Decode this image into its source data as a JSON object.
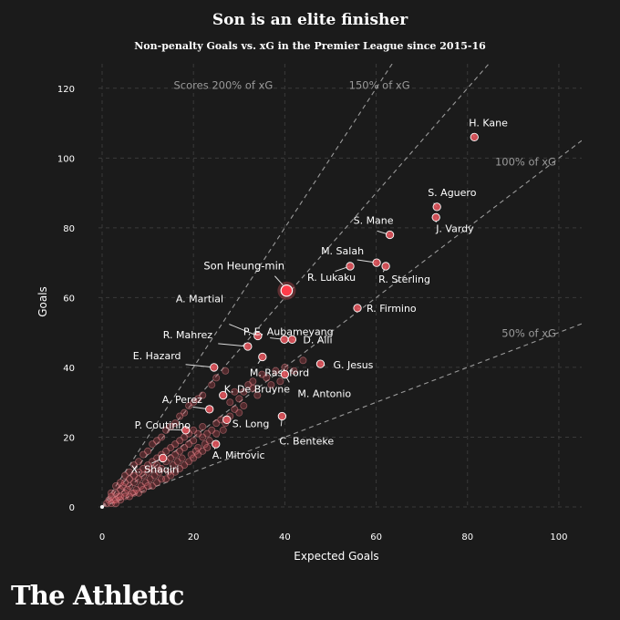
{
  "chart_data": {
    "type": "scatter",
    "title": "Son is an elite finisher",
    "subtitle": "Non-penalty Goals vs. xG in the Premier League since 2015-16",
    "xlabel": "Expected Goals",
    "ylabel": "Goals",
    "xlim": [
      0,
      105
    ],
    "ylim": [
      0,
      127
    ],
    "xticks": [
      0,
      20,
      40,
      60,
      80,
      100
    ],
    "yticks": [
      0,
      20,
      40,
      60,
      80,
      100,
      120
    ],
    "grid": true,
    "reference_lines": [
      {
        "ratio": 2.0,
        "label": "Scores 200% of xG"
      },
      {
        "ratio": 1.5,
        "label": "150% of xG"
      },
      {
        "ratio": 1.0,
        "label": "100% of xG"
      },
      {
        "ratio": 0.5,
        "label": "50% of xG"
      }
    ],
    "highlight": {
      "name": "Son Heung-min",
      "x": 40.4,
      "y": 62
    },
    "labeled_points": [
      {
        "name": "H. Kane",
        "x": 81.5,
        "y": 106
      },
      {
        "name": "S. Aguero",
        "x": 73.3,
        "y": 86
      },
      {
        "name": "J. Vardy",
        "x": 73.1,
        "y": 83
      },
      {
        "name": "S. Mane",
        "x": 63.0,
        "y": 78
      },
      {
        "name": "M. Salah",
        "x": 60.1,
        "y": 70
      },
      {
        "name": "R. Sterling",
        "x": 62.1,
        "y": 69
      },
      {
        "name": "R. Lukaku",
        "x": 54.3,
        "y": 69
      },
      {
        "name": "R. Firmino",
        "x": 55.9,
        "y": 57
      },
      {
        "name": "A. Martial",
        "x": 34.1,
        "y": 49
      },
      {
        "name": "P. E. Aubameyang",
        "x": 39.9,
        "y": 48
      },
      {
        "name": "D. Alli",
        "x": 41.6,
        "y": 48
      },
      {
        "name": "R. Mahrez",
        "x": 31.9,
        "y": 46
      },
      {
        "name": "M. Rashford",
        "x": 35.1,
        "y": 43
      },
      {
        "name": "E. Hazard",
        "x": 24.5,
        "y": 40
      },
      {
        "name": "G. Jesus",
        "x": 47.8,
        "y": 41
      },
      {
        "name": "K. De Bruyne",
        "x": 26.5,
        "y": 32
      },
      {
        "name": "M. Antonio",
        "x": 40.0,
        "y": 38
      },
      {
        "name": "A. Perez",
        "x": 23.5,
        "y": 28
      },
      {
        "name": "S. Long",
        "x": 27.3,
        "y": 25
      },
      {
        "name": "P. Coutinho",
        "x": 18.3,
        "y": 22
      },
      {
        "name": "C. Benteke",
        "x": 39.4,
        "y": 26
      },
      {
        "name": "X. Shaqiri",
        "x": 13.3,
        "y": 14
      },
      {
        "name": "A. Mitrovic",
        "x": 24.9,
        "y": 18
      }
    ],
    "other_points": [
      [
        1,
        1
      ],
      [
        1.5,
        2
      ],
      [
        2,
        1
      ],
      [
        2,
        3
      ],
      [
        2.5,
        2
      ],
      [
        3,
        4
      ],
      [
        3,
        2
      ],
      [
        3.5,
        3
      ],
      [
        4,
        5
      ],
      [
        4,
        3
      ],
      [
        4.5,
        6
      ],
      [
        5,
        4
      ],
      [
        5,
        7
      ],
      [
        5.5,
        5
      ],
      [
        6,
        8
      ],
      [
        6,
        6
      ],
      [
        6.5,
        4
      ],
      [
        7,
        9
      ],
      [
        7,
        7
      ],
      [
        7.5,
        5
      ],
      [
        8,
        10
      ],
      [
        8,
        8
      ],
      [
        8.5,
        6
      ],
      [
        9,
        11
      ],
      [
        9,
        9
      ],
      [
        9.5,
        7
      ],
      [
        10,
        12
      ],
      [
        10,
        10
      ],
      [
        10.5,
        8
      ],
      [
        11,
        13
      ],
      [
        11,
        11
      ],
      [
        11.5,
        9
      ],
      [
        12,
        14
      ],
      [
        12,
        12
      ],
      [
        12.5,
        10
      ],
      [
        13,
        15
      ],
      [
        13,
        11
      ],
      [
        14,
        16
      ],
      [
        14,
        13
      ],
      [
        14.5,
        10
      ],
      [
        15,
        17
      ],
      [
        15,
        14
      ],
      [
        15.5,
        12
      ],
      [
        16,
        18
      ],
      [
        16,
        15
      ],
      [
        16.5,
        13
      ],
      [
        17,
        19
      ],
      [
        17,
        16
      ],
      [
        17.5,
        14
      ],
      [
        18,
        20
      ],
      [
        18,
        17
      ],
      [
        19,
        21
      ],
      [
        19,
        18
      ],
      [
        19.5,
        15
      ],
      [
        20,
        22
      ],
      [
        20,
        19
      ],
      [
        20.5,
        16
      ],
      [
        21,
        21
      ],
      [
        21,
        17
      ],
      [
        22,
        23
      ],
      [
        22,
        20
      ],
      [
        22.5,
        18
      ],
      [
        23,
        21
      ],
      [
        23.5,
        19
      ],
      [
        24,
        22
      ],
      [
        25,
        24
      ],
      [
        25,
        21
      ],
      [
        26,
        25
      ],
      [
        26.5,
        22
      ],
      [
        27,
        24
      ],
      [
        28,
        26
      ],
      [
        28,
        30
      ],
      [
        29,
        28
      ],
      [
        29,
        33
      ],
      [
        30,
        27
      ],
      [
        30,
        31
      ],
      [
        31,
        33
      ],
      [
        31,
        29
      ],
      [
        32,
        35
      ],
      [
        33,
        36
      ],
      [
        33,
        34
      ],
      [
        34,
        32
      ],
      [
        35,
        38
      ],
      [
        36,
        37
      ],
      [
        37,
        35
      ],
      [
        38,
        39
      ],
      [
        39,
        36
      ],
      [
        40,
        40
      ],
      [
        42,
        39
      ],
      [
        44,
        42
      ],
      [
        3,
        1
      ],
      [
        4,
        2
      ],
      [
        5,
        3
      ],
      [
        6,
        3
      ],
      [
        7,
        4
      ],
      [
        8,
        4
      ],
      [
        9,
        5
      ],
      [
        10,
        6
      ],
      [
        11,
        6
      ],
      [
        12,
        7
      ],
      [
        13,
        8
      ],
      [
        14,
        8
      ],
      [
        15,
        9
      ],
      [
        16,
        10
      ],
      [
        17,
        11
      ],
      [
        18,
        12
      ],
      [
        19,
        13
      ],
      [
        20,
        14
      ],
      [
        21,
        15
      ],
      [
        22,
        16
      ],
      [
        23,
        17
      ],
      [
        2,
        4
      ],
      [
        3,
        6
      ],
      [
        4,
        7
      ],
      [
        5,
        9
      ],
      [
        6,
        10
      ],
      [
        7,
        12
      ],
      [
        8,
        13
      ],
      [
        9,
        15
      ],
      [
        10,
        16
      ],
      [
        11,
        18
      ],
      [
        12,
        19
      ],
      [
        13,
        20
      ],
      [
        14,
        22
      ],
      [
        15,
        23
      ],
      [
        16,
        24
      ],
      [
        17,
        26
      ],
      [
        18,
        27
      ],
      [
        19,
        29
      ],
      [
        20,
        30
      ],
      [
        21,
        31
      ],
      [
        22,
        32
      ],
      [
        24,
        35
      ],
      [
        25,
        37
      ],
      [
        27,
        39
      ]
    ]
  },
  "brand": "The Athletic"
}
